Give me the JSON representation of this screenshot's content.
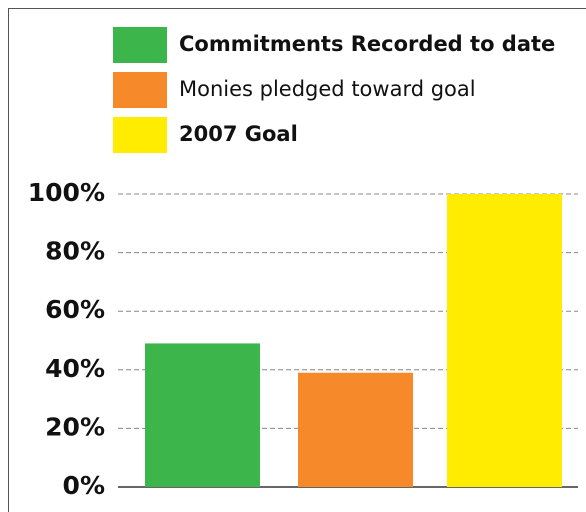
{
  "chart_data": {
    "type": "bar",
    "series": [
      {
        "name": "Commitments Recorded to date",
        "color": "#3cb54a",
        "values": [
          49
        ]
      },
      {
        "name": "Monies pledged toward goal",
        "color": "#f6892a",
        "values": [
          39
        ]
      },
      {
        "name": "2007 Goal",
        "color": "#ffec00",
        "values": [
          100
        ]
      }
    ],
    "ylim": [
      0,
      100
    ],
    "yticks": [
      {
        "value": 0,
        "label": "0%"
      },
      {
        "value": 20,
        "label": "20%"
      },
      {
        "value": 40,
        "label": "40%"
      },
      {
        "value": 60,
        "label": "60%"
      },
      {
        "value": 80,
        "label": "80%"
      },
      {
        "value": 100,
        "label": "100%"
      }
    ],
    "grid": true
  }
}
